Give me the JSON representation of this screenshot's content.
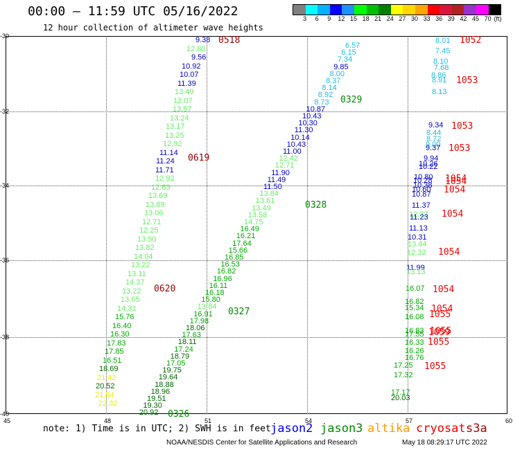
{
  "header": {
    "title": "00:00 – 11:59 UTC 05/16/2022",
    "subtitle": "12 hour collection of altimeter wave heights"
  },
  "colorbar": {
    "unit": "(ft)",
    "colors": [
      "#808080",
      "#00ffff",
      "#00b4ff",
      "#0000ff",
      "#1e90ff",
      "#00ff00",
      "#00c000",
      "#008000",
      "#ffff00",
      "#ffd700",
      "#ffa500",
      "#ff0000",
      "#dc143c",
      "#b22222",
      "#9932cc",
      "#ff00ff",
      "#000000"
    ],
    "labels": [
      "3",
      "6",
      "9",
      "12",
      "15",
      "18",
      "21",
      "24",
      "27",
      "30",
      "33",
      "36",
      "39",
      "42",
      "45",
      "70"
    ]
  },
  "axes": {
    "y_labels": [
      "-30",
      "-32",
      "-34",
      "-36",
      "-38",
      "-40"
    ],
    "x_labels": [
      "45",
      "48",
      "51",
      "54",
      "57",
      "60"
    ]
  },
  "points": [
    {
      "v": "9.38",
      "c": "#0000cc"
    },
    {
      "v": "12.80",
      "c": "#66ee66"
    },
    {
      "v": "9.56",
      "c": "#0000cc"
    },
    {
      "v": "10.92",
      "c": "#0000cc"
    },
    {
      "v": "10.07",
      "c": "#0000cc"
    },
    {
      "v": "11.39",
      "c": "#0000cc"
    },
    {
      "v": "13.49",
      "c": "#66ee66"
    },
    {
      "v": "12.07",
      "c": "#66ee66"
    },
    {
      "v": "13.57",
      "c": "#66ee66"
    },
    {
      "v": "13.24",
      "c": "#66ee66"
    },
    {
      "v": "13.17",
      "c": "#66ee66"
    },
    {
      "v": "13.25",
      "c": "#66ee66"
    },
    {
      "v": "12.92",
      "c": "#66ee66"
    },
    {
      "v": "11.14",
      "c": "#0000cc"
    },
    {
      "v": "11.24",
      "c": "#0000cc"
    },
    {
      "v": "11.71",
      "c": "#0000cc"
    },
    {
      "v": "12.92",
      "c": "#66ee66"
    },
    {
      "v": "12.63",
      "c": "#66ee66"
    },
    {
      "v": "13.69",
      "c": "#66ee66"
    },
    {
      "v": "13.89",
      "c": "#66ee66"
    },
    {
      "v": "13.06",
      "c": "#66ee66"
    },
    {
      "v": "12.71",
      "c": "#66ee66"
    },
    {
      "v": "12.25",
      "c": "#66ee66"
    },
    {
      "v": "13.50",
      "c": "#66ee66"
    },
    {
      "v": "13.82",
      "c": "#66ee66"
    },
    {
      "v": "14.04",
      "c": "#66ee66"
    },
    {
      "v": "13.22",
      "c": "#66ee66"
    },
    {
      "v": "13.11",
      "c": "#66ee66"
    },
    {
      "v": "14.37",
      "c": "#66ee66"
    },
    {
      "v": "13.22",
      "c": "#66ee66"
    },
    {
      "v": "13.65",
      "c": "#66ee66"
    },
    {
      "v": "14.31",
      "c": "#66ee66"
    },
    {
      "v": "15.76",
      "c": "#00aa00"
    },
    {
      "v": "16.40",
      "c": "#00aa00"
    },
    {
      "v": "16.30",
      "c": "#00aa00"
    },
    {
      "v": "17.83",
      "c": "#00aa00"
    },
    {
      "v": "17.85",
      "c": "#00aa00"
    },
    {
      "v": "16.51",
      "c": "#00aa00"
    },
    {
      "v": "18.69",
      "c": "#006600"
    },
    {
      "v": "21.42",
      "c": "#eeee00"
    },
    {
      "v": "20.52",
      "c": "#006600"
    },
    {
      "v": "21.54",
      "c": "#eeee00"
    },
    {
      "v": "22.32",
      "c": "#eeee00"
    },
    {
      "v": "6.57",
      "c": "#22bbdd"
    },
    {
      "v": "6.15",
      "c": "#22bbdd"
    },
    {
      "v": "7.34",
      "c": "#22bbdd"
    },
    {
      "v": "9.85",
      "c": "#0000cc"
    },
    {
      "v": "8.00",
      "c": "#22bbdd"
    },
    {
      "v": "8.37",
      "c": "#22bbdd"
    },
    {
      "v": "8.14",
      "c": "#22bbdd"
    },
    {
      "v": "8.92",
      "c": "#22bbdd"
    },
    {
      "v": "8.73",
      "c": "#22bbdd"
    },
    {
      "v": "10.87",
      "c": "#0000cc"
    },
    {
      "v": "10.43",
      "c": "#0000cc"
    },
    {
      "v": "10.30",
      "c": "#0000cc"
    },
    {
      "v": "11.30",
      "c": "#0000cc"
    },
    {
      "v": "10.14",
      "c": "#0000cc"
    },
    {
      "v": "10.43",
      "c": "#0000cc"
    },
    {
      "v": "11.00",
      "c": "#0000cc"
    },
    {
      "v": "12.42",
      "c": "#66ee66"
    },
    {
      "v": "12.71",
      "c": "#66ee66"
    },
    {
      "v": "11.90",
      "c": "#0000cc"
    },
    {
      "v": "11.49",
      "c": "#0000cc"
    },
    {
      "v": "11.50",
      "c": "#0000cc"
    },
    {
      "v": "13.84",
      "c": "#66ee66"
    },
    {
      "v": "13.61",
      "c": "#66ee66"
    },
    {
      "v": "13.49",
      "c": "#66ee66"
    },
    {
      "v": "13.58",
      "c": "#66ee66"
    },
    {
      "v": "14.75",
      "c": "#66ee66"
    },
    {
      "v": "16.49",
      "c": "#00aa00"
    },
    {
      "v": "16.21",
      "c": "#00aa00"
    },
    {
      "v": "17.64",
      "c": "#00aa00"
    },
    {
      "v": "15.66",
      "c": "#00aa00"
    },
    {
      "v": "16.85",
      "c": "#00aa00"
    },
    {
      "v": "16.53",
      "c": "#00aa00"
    },
    {
      "v": "16.82",
      "c": "#00aa00"
    },
    {
      "v": "16.96",
      "c": "#00aa00"
    },
    {
      "v": "16.11",
      "c": "#00aa00"
    },
    {
      "v": "16.18",
      "c": "#00aa00"
    },
    {
      "v": "15.80",
      "c": "#00aa00"
    },
    {
      "v": "13.84",
      "c": "#66ee66"
    },
    {
      "v": "16.91",
      "c": "#00aa00"
    },
    {
      "v": "17.98",
      "c": "#00aa00"
    },
    {
      "v": "18.06",
      "c": "#006600"
    },
    {
      "v": "17.63",
      "c": "#00aa00"
    },
    {
      "v": "18.11",
      "c": "#006600"
    },
    {
      "v": "17.24",
      "c": "#00aa00"
    },
    {
      "v": "18.79",
      "c": "#006600"
    },
    {
      "v": "17.05",
      "c": "#00aa00"
    },
    {
      "v": "19.75",
      "c": "#006600"
    },
    {
      "v": "19.64",
      "c": "#006600"
    },
    {
      "v": "18.88",
      "c": "#006600"
    },
    {
      "v": "18.96",
      "c": "#006600"
    },
    {
      "v": "19.51",
      "c": "#006600"
    },
    {
      "v": "19.30",
      "c": "#006600"
    },
    {
      "v": "20.92",
      "c": "#006600"
    },
    {
      "v": "8.01",
      "c": "#22bbdd"
    },
    {
      "v": "7.45",
      "c": "#22bbdd"
    },
    {
      "v": "8.10",
      "c": "#22bbdd"
    },
    {
      "v": "7.68",
      "c": "#22bbdd"
    },
    {
      "v": "8.86",
      "c": "#22bbdd"
    },
    {
      "v": "8.91",
      "c": "#22bbdd"
    },
    {
      "v": "8.13",
      "c": "#22bbdd"
    },
    {
      "v": "9.34",
      "c": "#0000cc"
    },
    {
      "v": "8.44",
      "c": "#22bbdd"
    },
    {
      "v": "8.72",
      "c": "#22bbdd"
    },
    {
      "v": "9.00",
      "c": "#22bbdd"
    },
    {
      "v": "9.37",
      "c": "#0000cc"
    },
    {
      "v": "9.94",
      "c": "#0000cc"
    },
    {
      "v": "10.26",
      "c": "#0000cc"
    },
    {
      "v": "10.22",
      "c": "#0000cc"
    },
    {
      "v": "10.80",
      "c": "#0000cc"
    },
    {
      "v": "10.28",
      "c": "#0000cc"
    },
    {
      "v": "10.38",
      "c": "#0000cc"
    },
    {
      "v": "10.60",
      "c": "#0000cc"
    },
    {
      "v": "10.87",
      "c": "#0000cc"
    },
    {
      "v": "11.37",
      "c": "#0000cc"
    },
    {
      "v": "12.32",
      "c": "#66ee66"
    },
    {
      "v": "11.23",
      "c": "#0000cc"
    },
    {
      "v": "11.13",
      "c": "#0000cc"
    },
    {
      "v": "10.31",
      "c": "#0000cc"
    },
    {
      "v": "13.44",
      "c": "#66ee66"
    },
    {
      "v": "12.32",
      "c": "#66ee66"
    },
    {
      "v": "11.99",
      "c": "#0000cc"
    },
    {
      "v": "13.13",
      "c": "#66ee66"
    },
    {
      "v": "16.07",
      "c": "#00aa00"
    },
    {
      "v": "16.82",
      "c": "#00aa00"
    },
    {
      "v": "15.34",
      "c": "#00aa00"
    },
    {
      "v": "16.08",
      "c": "#00aa00"
    },
    {
      "v": "16.83",
      "c": "#00aa00"
    },
    {
      "v": "17.55",
      "c": "#00aa00"
    },
    {
      "v": "16.33",
      "c": "#00aa00"
    },
    {
      "v": "16.26",
      "c": "#00aa00"
    },
    {
      "v": "16.76",
      "c": "#00aa00"
    },
    {
      "v": "17.25",
      "c": "#00aa00"
    },
    {
      "v": "17.32",
      "c": "#00aa00"
    },
    {
      "v": "17.17",
      "c": "#00aa00"
    },
    {
      "v": "20.03",
      "c": "#006600"
    }
  ],
  "tags": [
    {
      "t": "0518",
      "c": "#990000"
    },
    {
      "t": "0619",
      "c": "#990000"
    },
    {
      "t": "0620",
      "c": "#990000"
    },
    {
      "t": "0329",
      "c": "#008800"
    },
    {
      "t": "0328",
      "c": "#008800"
    },
    {
      "t": "0327",
      "c": "#008800"
    },
    {
      "t": "0326",
      "c": "#008800"
    },
    {
      "t": "1052",
      "c": "#ee0000"
    },
    {
      "t": "1053",
      "c": "#ee0000"
    },
    {
      "t": "1053",
      "c": "#ee0000"
    },
    {
      "t": "1053",
      "c": "#ee0000"
    },
    {
      "t": "1054",
      "c": "#ee0000"
    },
    {
      "t": "1054",
      "c": "#ee0000"
    },
    {
      "t": "1054",
      "c": "#ee0000"
    },
    {
      "t": "1054",
      "c": "#ee0000"
    },
    {
      "t": "1054",
      "c": "#ee0000"
    },
    {
      "t": "1054",
      "c": "#ee0000"
    },
    {
      "t": "1054",
      "c": "#ee0000"
    },
    {
      "t": "1055",
      "c": "#ee0000"
    },
    {
      "t": "1055",
      "c": "#ee0000"
    },
    {
      "t": "1059",
      "c": "#ee0000"
    },
    {
      "t": "1055",
      "c": "#ee0000"
    },
    {
      "t": "1055",
      "c": "#ee0000"
    }
  ],
  "footer": {
    "note": "note: 1) Time is in UTC; 2) SWH is in feet",
    "legend": [
      {
        "name": "jason2",
        "color": "#0000ee"
      },
      {
        "name": "jason3",
        "color": "#008800"
      },
      {
        "name": "altika",
        "color": "#ff9900"
      },
      {
        "name": "cryosat",
        "color": "#ee0000"
      },
      {
        "name": "s3a",
        "color": "#990000"
      }
    ],
    "credit": "NOAA/NESDIS Center for Satellite Applications and Research",
    "timestamp": "May 18 08:29:17 UTC 2022"
  }
}
